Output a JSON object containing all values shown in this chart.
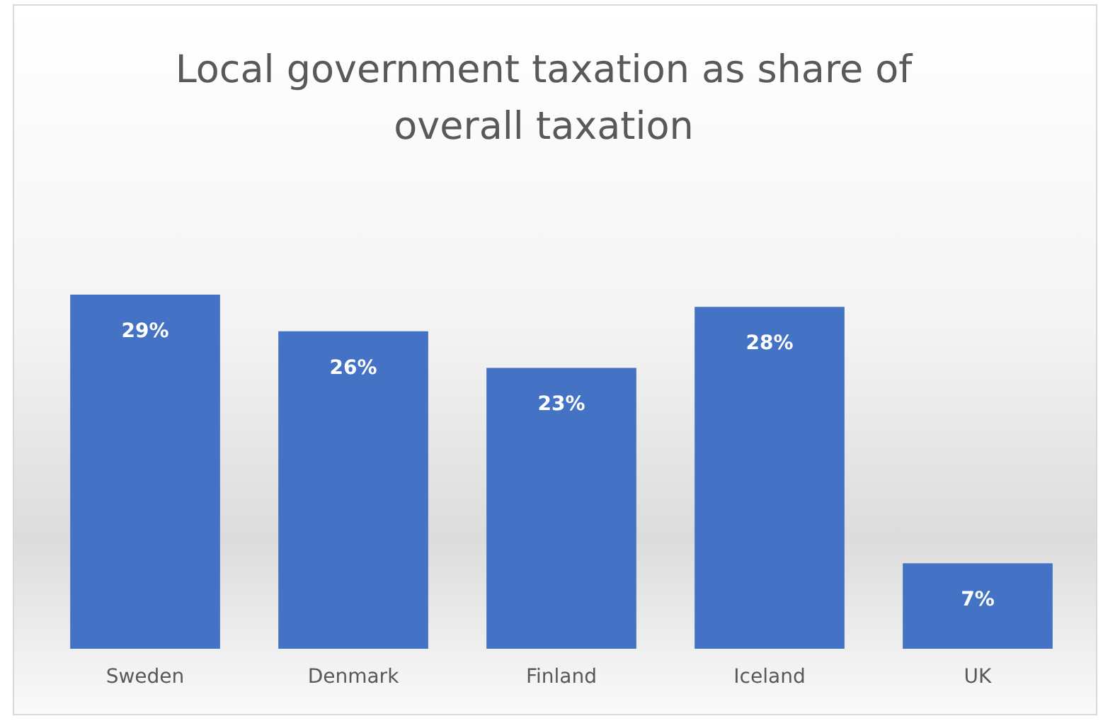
{
  "chart_data": {
    "type": "bar",
    "title": "Local government taxation as share of overall taxation",
    "categories": [
      "Sweden",
      "Denmark",
      "Finland",
      "Iceland",
      "UK"
    ],
    "values": [
      29,
      26,
      23,
      28,
      7
    ],
    "value_labels": [
      "29%",
      "26%",
      "23%",
      "28%",
      "7%"
    ],
    "color": "#4472c4"
  }
}
